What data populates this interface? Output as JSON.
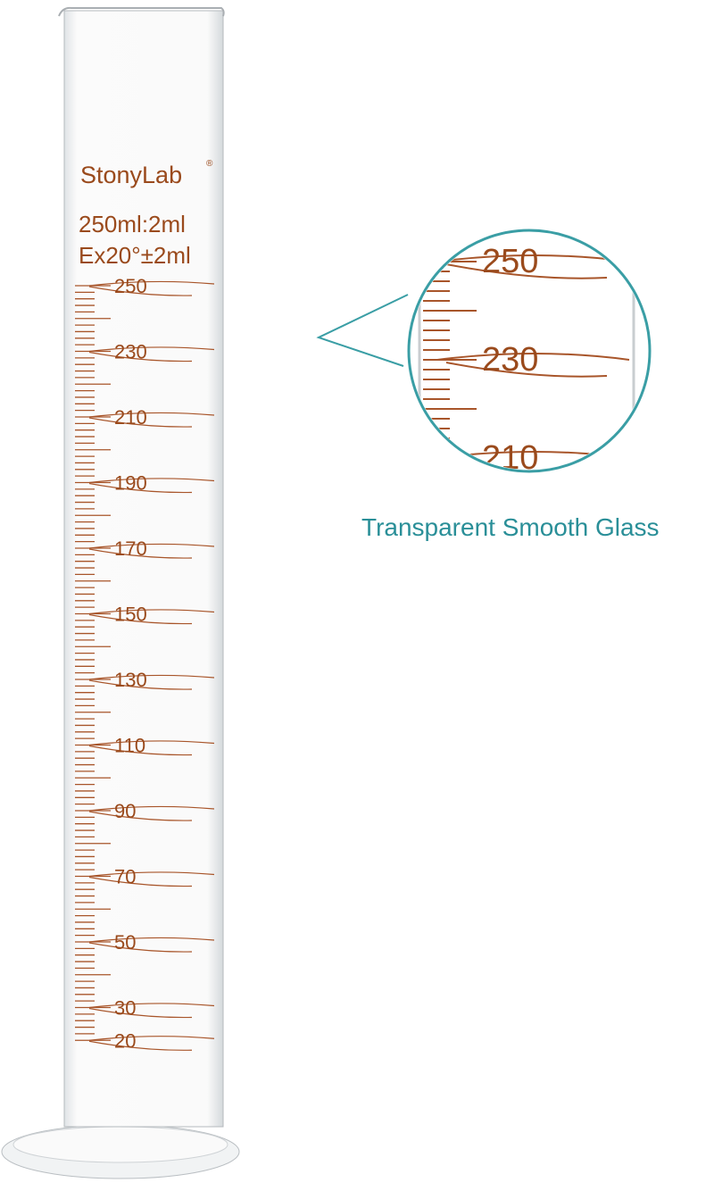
{
  "product": {
    "brand": "StonyLab",
    "brand_mark": "®",
    "capacity": "250ml:2ml",
    "accuracy": "Ex20°±2ml",
    "scale_labels": [
      "250",
      "230",
      "210",
      "190",
      "170",
      "150",
      "130",
      "110",
      "90",
      "70",
      "50",
      "30",
      "20"
    ],
    "zoom_labels": [
      "250",
      "230",
      "210"
    ],
    "caption": "Transparent Smooth Glass"
  }
}
